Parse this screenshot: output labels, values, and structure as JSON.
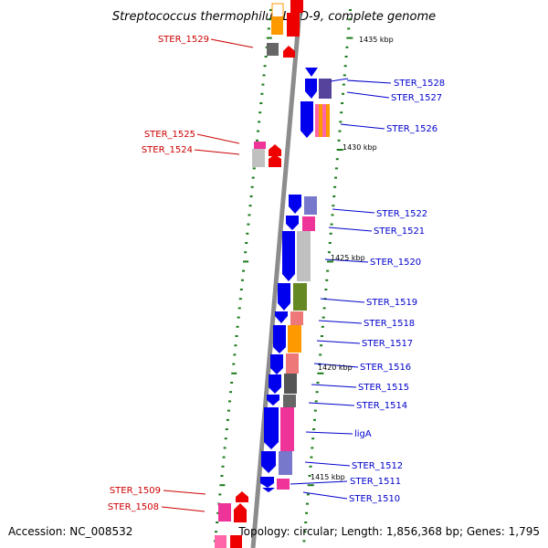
{
  "title": "Streptococcus thermophilus LMD-9, complete genome",
  "footer": {
    "accession": "Accession: NC_008532",
    "summary": "Topology: circular; Length: 1,856,368 bp; Genes: 1,795"
  },
  "colors": {
    "backbone": "#8c8c8c",
    "tick": "#1a7a1a",
    "forward_label": "#0000cc",
    "reverse_label": "#cc0000",
    "forward_arrow": "#0000ee",
    "reverse_arrow": "#ee0000"
  },
  "kbp_labels": [
    "1435 kbp",
    "1430 kbp",
    "1425 kbp",
    "1420 kbp",
    "1415 kbp"
  ],
  "forward_genes": [
    "STER_1528",
    "STER_1527",
    "STER_1526",
    "STER_1522",
    "STER_1521",
    "STER_1520",
    "STER_1519",
    "STER_1518",
    "STER_1517",
    "STER_1516",
    "STER_1515",
    "STER_1514",
    "ligA",
    "STER_1512",
    "STER_1511",
    "STER_1510"
  ],
  "reverse_genes": [
    "STER_1529",
    "STER_1525",
    "STER_1524",
    "STER_1509",
    "STER_1508"
  ]
}
